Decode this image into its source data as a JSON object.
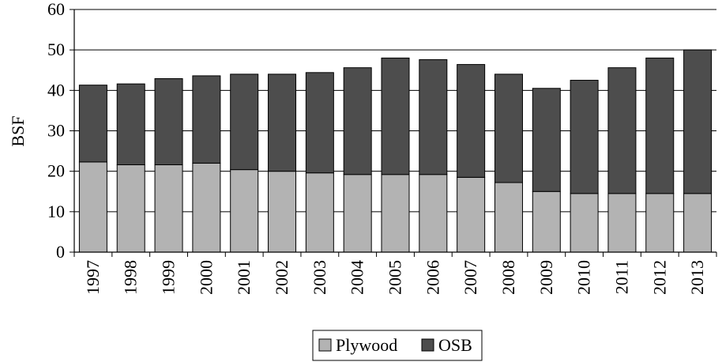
{
  "chart_data": {
    "type": "bar",
    "stacked": true,
    "title": "",
    "xlabel": "",
    "ylabel": "BSF",
    "ylim": [
      0,
      60
    ],
    "yticks": [
      0,
      10,
      20,
      30,
      40,
      50,
      60
    ],
    "categories": [
      "1997",
      "1998",
      "1999",
      "2000",
      "2001",
      "2002",
      "2003",
      "2004",
      "2005",
      "2006",
      "2007",
      "2008",
      "2009",
      "2010",
      "2011",
      "2012",
      "2013"
    ],
    "series": [
      {
        "name": "Plywood",
        "color": "#b3b3b3",
        "values": [
          22.3,
          21.6,
          21.6,
          22.0,
          20.4,
          20.0,
          19.6,
          19.2,
          19.2,
          19.2,
          18.5,
          17.2,
          15.0,
          14.5,
          14.5,
          14.5,
          14.5
        ]
      },
      {
        "name": "OSB",
        "color": "#4d4d4d",
        "values": [
          19.0,
          20.0,
          21.3,
          21.6,
          23.6,
          24.0,
          24.8,
          26.4,
          28.8,
          28.4,
          27.9,
          26.8,
          25.5,
          28.0,
          31.1,
          33.5,
          35.5
        ]
      }
    ],
    "grid": "horizontal",
    "legend_position": "bottom-center"
  }
}
